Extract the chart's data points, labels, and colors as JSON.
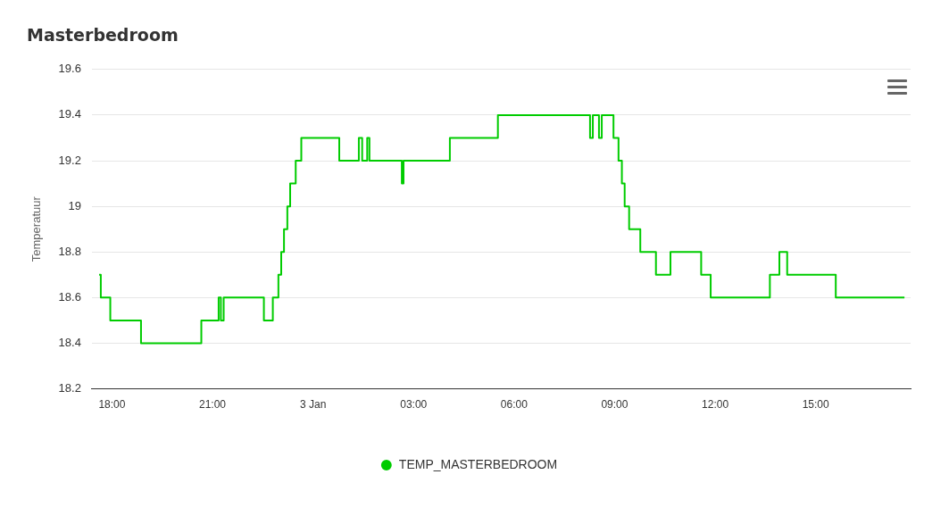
{
  "chart_data": {
    "type": "step",
    "title": "Masterbedroom",
    "ylabel": "Temperatuur",
    "x": [
      "--01-02T17:37",
      "--01-02T17:40",
      "--01-02T17:57",
      "--01-02T18:52",
      "--01-02T20:40",
      "--01-02T21:11",
      "--01-02T21:15",
      "--01-02T21:20",
      "--01-02T22:32",
      "--01-02T22:48",
      "--01-02T22:58",
      "--01-02T23:03",
      "--01-02T23:08",
      "--01-02T23:14",
      "--01-02T23:19",
      "--01-02T23:29",
      "--01-02T23:39",
      "--01-03T00:47",
      "--01-03T01:22",
      "--01-03T01:28",
      "--01-03T01:37",
      "--01-03T01:41",
      "--01-03T02:39",
      "--01-03T02:42",
      "--01-03T04:05",
      "--01-03T05:31",
      "--01-03T08:16",
      "--01-03T08:21",
      "--01-03T08:32",
      "--01-03T08:37",
      "--01-03T08:58",
      "--01-03T09:07",
      "--01-03T09:13",
      "--01-03T09:18",
      "--01-03T09:26",
      "--01-03T09:46",
      "--01-03T10:14",
      "--01-03T10:40",
      "--01-03T11:35",
      "--01-03T11:52",
      "--01-03T13:38",
      "--01-03T13:55",
      "--01-03T14:09",
      "--01-03T15:36",
      "--01-03T17:39"
    ],
    "series": [
      {
        "name": "TEMP_MASTERBEDROOM",
        "color": "#00cc00",
        "values": [
          18.7,
          18.6,
          18.5,
          18.4,
          18.5,
          18.6,
          18.5,
          18.6,
          18.5,
          18.6,
          18.7,
          18.8,
          18.9,
          19.0,
          19.1,
          19.2,
          19.3,
          19.2,
          19.3,
          19.2,
          19.3,
          19.2,
          19.1,
          19.2,
          19.3,
          19.4,
          19.3,
          19.4,
          19.3,
          19.4,
          19.3,
          19.2,
          19.1,
          19.0,
          18.9,
          18.8,
          18.7,
          18.8,
          18.7,
          18.6,
          18.7,
          18.8,
          18.7,
          18.6,
          18.6
        ]
      }
    ],
    "xlim": [
      "--01-02T17:24",
      "--01-03T17:50"
    ],
    "xticks": [
      {
        "value": "--01-02T18:00",
        "label": "18:00"
      },
      {
        "value": "--01-02T21:00",
        "label": "21:00"
      },
      {
        "value": "--01-03T00:00",
        "label": "3 Jan"
      },
      {
        "value": "--01-03T03:00",
        "label": "03:00"
      },
      {
        "value": "--01-03T06:00",
        "label": "06:00"
      },
      {
        "value": "--01-03T09:00",
        "label": "09:00"
      },
      {
        "value": "--01-03T12:00",
        "label": "12:00"
      },
      {
        "value": "--01-03T15:00",
        "label": "15:00"
      }
    ],
    "ylim": [
      18.2,
      19.6
    ],
    "yticks": [
      18.2,
      18.4,
      18.6,
      18.8,
      19,
      19.2,
      19.4,
      19.6
    ],
    "grid": "y",
    "legend": "bottom",
    "marker": "none",
    "line_style": "solid"
  }
}
